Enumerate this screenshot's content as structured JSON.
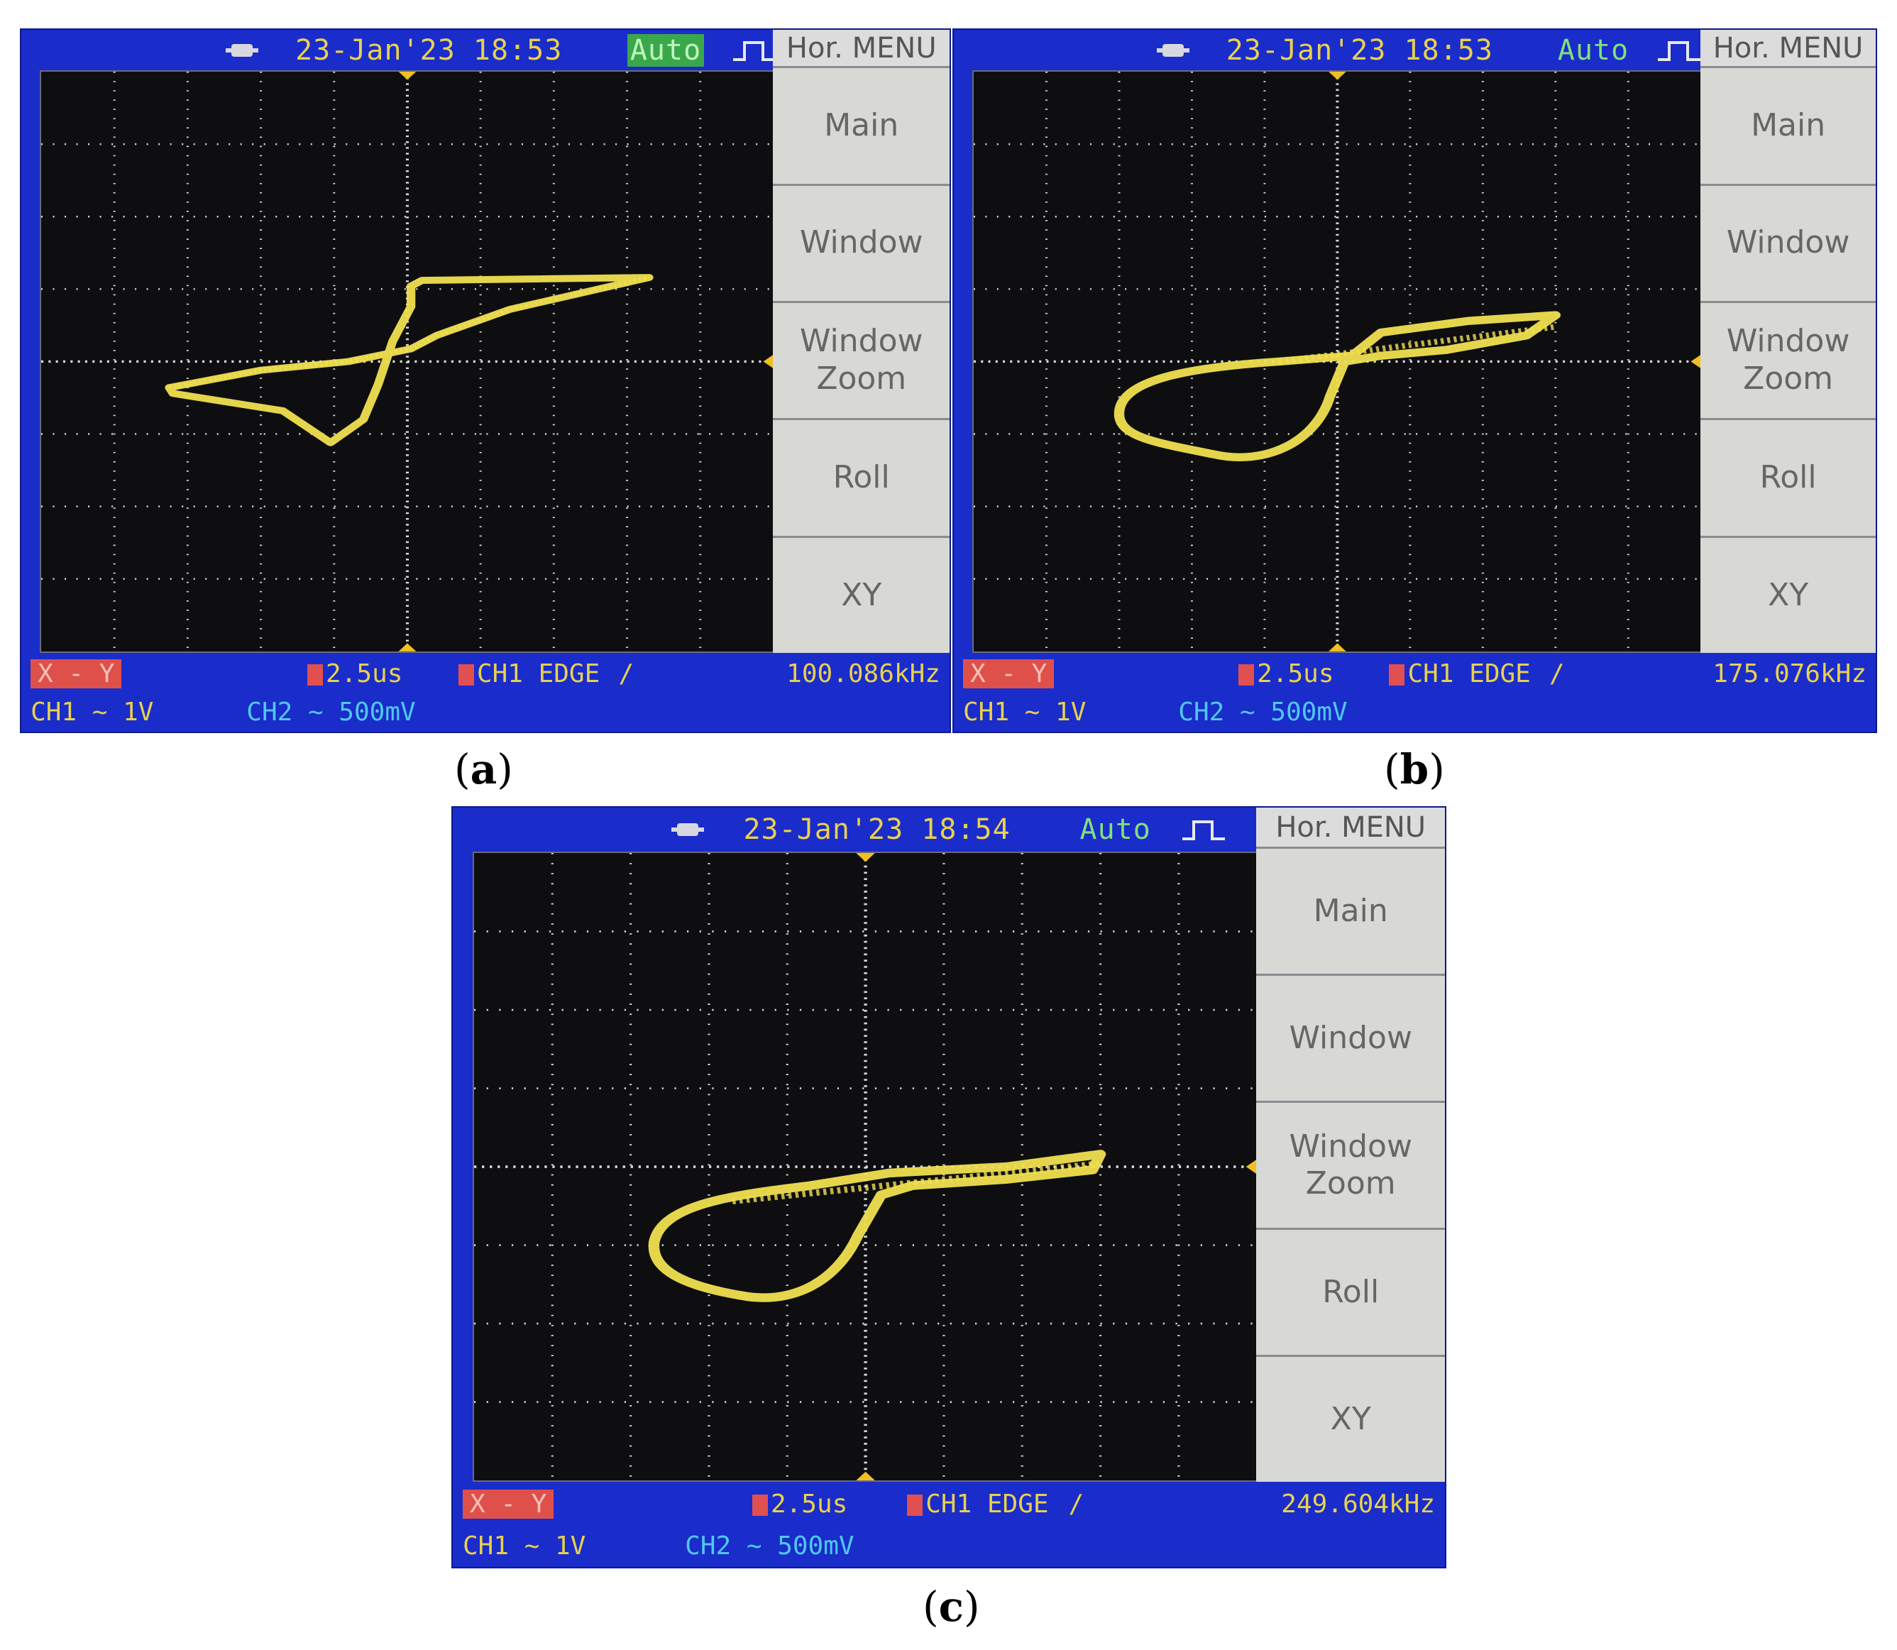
{
  "panels": [
    {
      "id": "a",
      "caption": "a",
      "datetime": "23-Jan'23 18:53",
      "mode": "Auto",
      "menu_title": "Hor. MENU",
      "menu_items": [
        "Main",
        "Window",
        "Window\nZoom",
        "Roll",
        "XY"
      ],
      "xy_label": "X - Y",
      "timebase": "2.5us",
      "trigger": "CH1  EDGE",
      "slope": "/",
      "frequency": "100.086kHz",
      "ch1": "CH1  ~ 1V",
      "ch2": "CH2  ~ 500mV"
    },
    {
      "id": "b",
      "caption": "b",
      "datetime": "23-Jan'23 18:53",
      "mode": "Auto",
      "menu_title": "Hor. MENU",
      "menu_items": [
        "Main",
        "Window",
        "Window\nZoom",
        "Roll",
        "XY"
      ],
      "xy_label": "X - Y",
      "timebase": "2.5us",
      "trigger": "CH1  EDGE",
      "slope": "/",
      "frequency": "175.076kHz",
      "ch1": "CH1  ~ 1V",
      "ch2": "CH2  ~ 500mV"
    },
    {
      "id": "c",
      "caption": "c",
      "datetime": "23-Jan'23 18:54",
      "mode": "Auto",
      "menu_title": "Hor. MENU",
      "menu_items": [
        "Main",
        "Window",
        "Window\nZoom",
        "Roll",
        "XY"
      ],
      "xy_label": "X - Y",
      "timebase": "2.5us",
      "trigger": "CH1  EDGE",
      "slope": "/",
      "frequency": "249.604kHz",
      "ch1": "CH1  ~ 1V",
      "ch2": "CH2  ~ 500mV"
    }
  ],
  "colors": {
    "bezel": "#1a2cc9",
    "trace": "#f0e050",
    "grid": "#d8d8d8"
  }
}
